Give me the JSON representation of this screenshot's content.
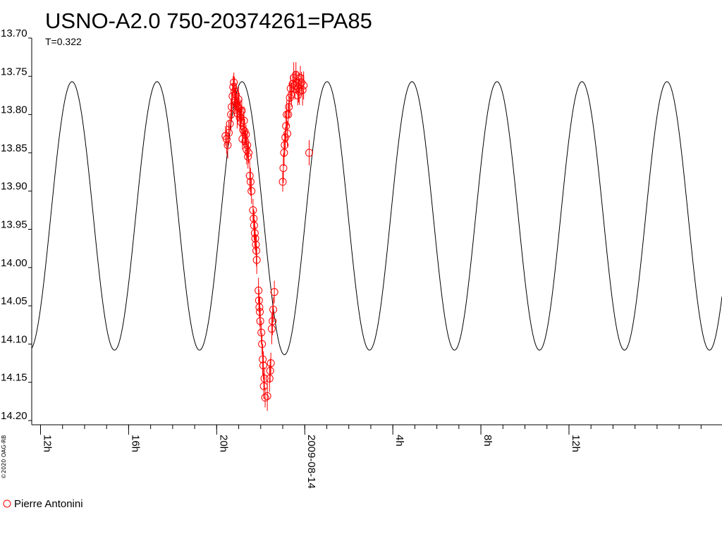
{
  "chart_data": {
    "type": "scatter",
    "title": "USNO-A2.0 750-20374261=PA85",
    "subtitle": "T=0.322",
    "copyright": "©2020 OAG-RB",
    "date_label": "2009-08-14",
    "x_unit": "hours, relative to 2009-08-14 00h",
    "xlim": [
      -12.4,
      18.95
    ],
    "ylim": [
      13.7,
      14.2
    ],
    "y_inverted": true,
    "grid": false,
    "y_ticks": [
      "13.70",
      "13.75",
      "13.80",
      "13.85",
      "13.90",
      "13.95",
      "14.00",
      "14.05",
      "14.10",
      "14.15",
      "14.20"
    ],
    "x_ticks": [
      {
        "x": -12,
        "label": "12h"
      },
      {
        "x": -8,
        "label": "16h"
      },
      {
        "x": -4,
        "label": "20h"
      },
      {
        "x": 0,
        "label": "2009-08-14"
      },
      {
        "x": 4,
        "label": "4h"
      },
      {
        "x": 8,
        "label": "8h"
      },
      {
        "x": 12,
        "label": "12h"
      }
    ],
    "model_curve": {
      "period_hours": 3.86,
      "max_mag": 13.757,
      "min_mag": 14.108,
      "max_at_hours": -2.85,
      "deep_min_at_hours": -0.95,
      "deep_min_mag": 14.114,
      "color": "#000000"
    },
    "legend": {
      "position": "bottom-left",
      "entries": [
        {
          "name": "Pierre Antonini",
          "marker": "open-circle",
          "color": "#ff0000"
        }
      ]
    },
    "series": [
      {
        "name": "Pierre Antonini",
        "color": "#ff0000",
        "points": [
          [
            -3.6,
            13.828
          ],
          [
            -3.55,
            13.832
          ],
          [
            -3.5,
            13.84
          ],
          [
            -3.45,
            13.824
          ],
          [
            -3.4,
            13.812
          ],
          [
            -3.35,
            13.8
          ],
          [
            -3.32,
            13.79
          ],
          [
            -3.28,
            13.776
          ],
          [
            -3.25,
            13.764
          ],
          [
            -3.22,
            13.758
          ],
          [
            -3.19,
            13.77
          ],
          [
            -3.16,
            13.782
          ],
          [
            -3.13,
            13.774
          ],
          [
            -3.1,
            13.786
          ],
          [
            -3.07,
            13.798
          ],
          [
            -3.04,
            13.79
          ],
          [
            -3.01,
            13.78
          ],
          [
            -2.98,
            13.792
          ],
          [
            -2.95,
            13.804
          ],
          [
            -2.92,
            13.8
          ],
          [
            -2.89,
            13.81
          ],
          [
            -2.86,
            13.795
          ],
          [
            -2.83,
            13.832
          ],
          [
            -2.8,
            13.82
          ],
          [
            -2.76,
            13.808
          ],
          [
            -2.73,
            13.822
          ],
          [
            -2.7,
            13.835
          ],
          [
            -2.67,
            13.826
          ],
          [
            -2.64,
            13.846
          ],
          [
            -2.61,
            13.84
          ],
          [
            -2.58,
            13.855
          ],
          [
            -2.55,
            13.85
          ],
          [
            -2.5,
            13.88
          ],
          [
            -2.46,
            13.888
          ],
          [
            -2.42,
            13.9
          ],
          [
            -2.35,
            13.925
          ],
          [
            -2.32,
            13.936
          ],
          [
            -2.3,
            13.945
          ],
          [
            -2.27,
            13.955
          ],
          [
            -2.25,
            13.962
          ],
          [
            -2.22,
            13.97
          ],
          [
            -2.2,
            13.978
          ],
          [
            -2.18,
            13.99
          ],
          [
            -2.1,
            14.03
          ],
          [
            -2.08,
            14.043
          ],
          [
            -2.06,
            14.052
          ],
          [
            -2.04,
            14.058
          ],
          [
            -2.02,
            14.07
          ],
          [
            -1.97,
            14.085
          ],
          [
            -1.94,
            14.1
          ],
          [
            -1.91,
            14.12
          ],
          [
            -1.88,
            14.128
          ],
          [
            -1.86,
            14.155
          ],
          [
            -1.83,
            14.145
          ],
          [
            -1.8,
            14.17
          ],
          [
            -1.7,
            14.168
          ],
          [
            -1.6,
            14.145
          ],
          [
            -1.57,
            14.135
          ],
          [
            -1.54,
            14.125
          ],
          [
            -1.5,
            14.08
          ],
          [
            -1.46,
            14.07
          ],
          [
            -1.43,
            14.055
          ],
          [
            -1.38,
            14.032
          ],
          [
            -1.0,
            13.888
          ],
          [
            -0.97,
            13.87
          ],
          [
            -0.94,
            13.85
          ],
          [
            -0.91,
            13.84
          ],
          [
            -0.88,
            13.83
          ],
          [
            -0.85,
            13.815
          ],
          [
            -0.82,
            13.8
          ],
          [
            -0.79,
            13.825
          ],
          [
            -0.75,
            13.8
          ],
          [
            -0.72,
            13.79
          ],
          [
            -0.68,
            13.778
          ],
          [
            -0.64,
            13.766
          ],
          [
            -0.6,
            13.774
          ],
          [
            -0.55,
            13.76
          ],
          [
            -0.5,
            13.752
          ],
          [
            -0.45,
            13.762
          ],
          [
            -0.4,
            13.748
          ],
          [
            -0.36,
            13.758
          ],
          [
            -0.32,
            13.775
          ],
          [
            -0.28,
            13.765
          ],
          [
            -0.24,
            13.77
          ],
          [
            -0.2,
            13.752
          ],
          [
            -0.15,
            13.758
          ],
          [
            -0.1,
            13.768
          ],
          [
            -0.05,
            13.762
          ],
          [
            0.2,
            13.85
          ]
        ]
      }
    ]
  }
}
